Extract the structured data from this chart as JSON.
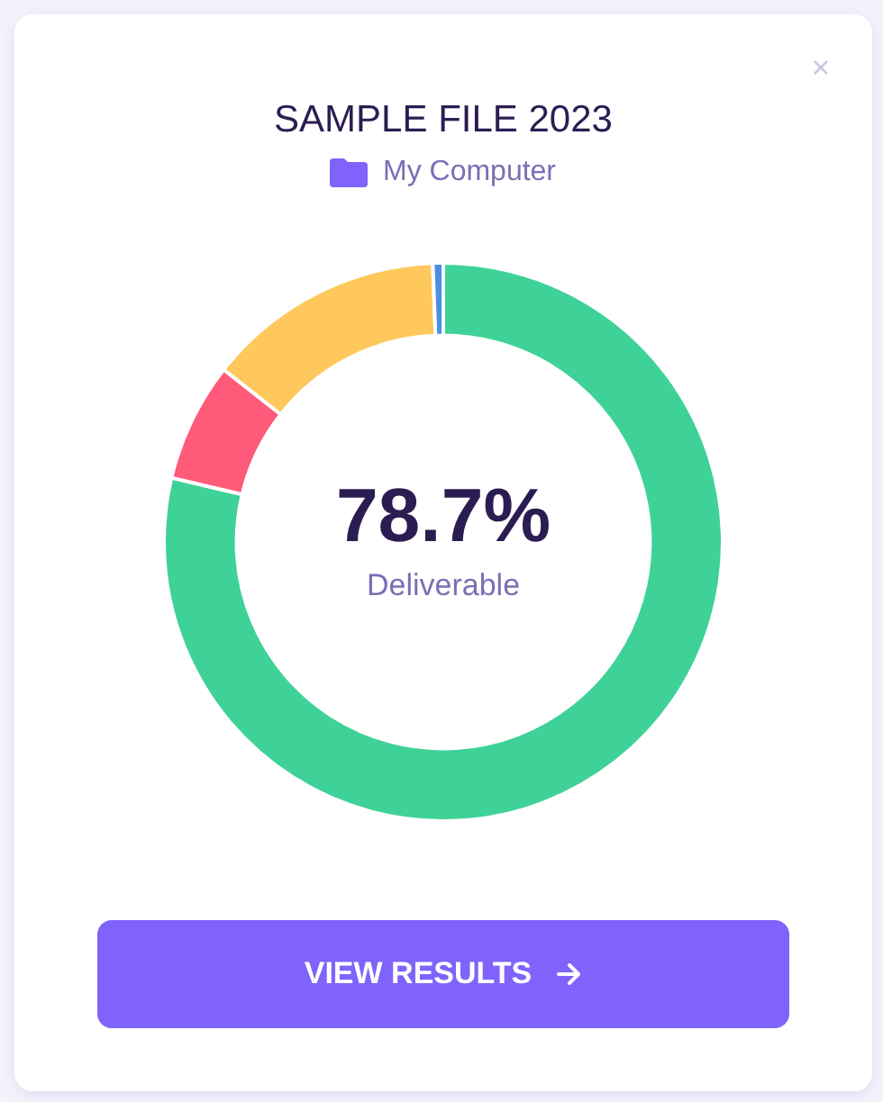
{
  "chart_data": {
    "type": "donut",
    "title": "SAMPLE FILE 2023",
    "subtitle": "My Computer",
    "categories": [
      "Deliverable",
      null,
      null,
      null
    ],
    "values": [
      78.7,
      6.9,
      13.8,
      0.6
    ],
    "colors": [
      "#3fd298",
      "#ff5a79",
      "#ffc85c",
      "#4a90e2"
    ],
    "value_labels": [
      "78.7%",
      null,
      null,
      null
    ],
    "annotations": [
      "VIEW RESULTS"
    ],
    "legend": false
  }
}
